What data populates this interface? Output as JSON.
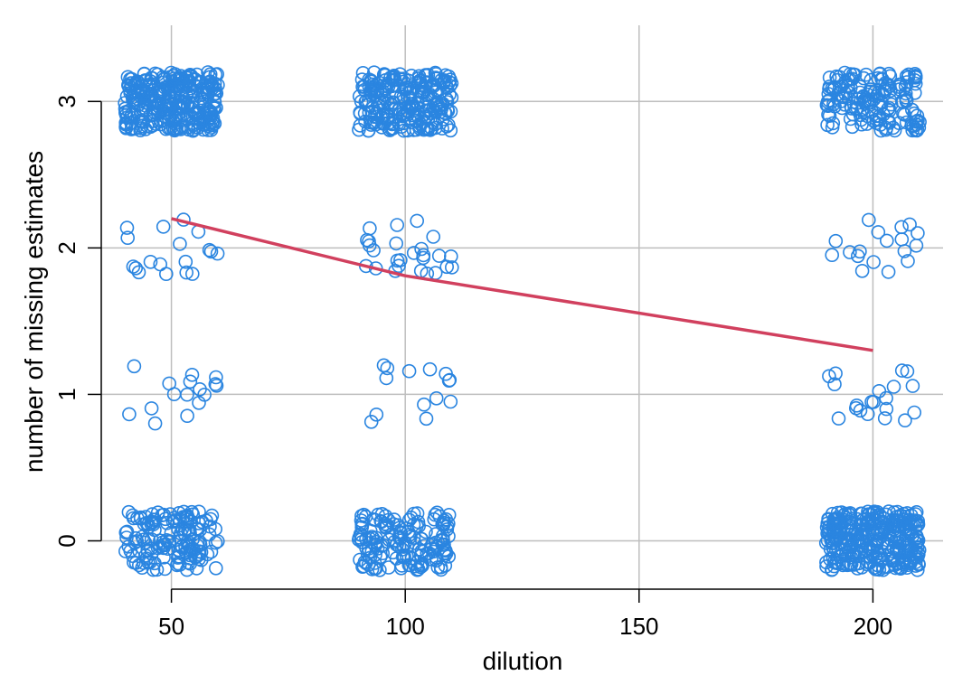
{
  "chart_data": {
    "type": "scatter",
    "title": "",
    "xlabel": "dilution",
    "ylabel": "number of missing estimates",
    "xlim": [
      35,
      215
    ],
    "ylim": [
      -0.33,
      3.52
    ],
    "x_ticks": [
      50,
      100,
      150,
      200
    ],
    "x_tick_labels": [
      "50",
      "100",
      "150",
      "200"
    ],
    "y_ticks": [
      0,
      1,
      2,
      3
    ],
    "y_tick_labels": [
      "0",
      "1",
      "2",
      "3"
    ],
    "grid": true,
    "legend": "none",
    "colors": {
      "points": "#2a85e0",
      "trend": "#d1405e",
      "grid": "#bebebe",
      "axis": "#000000"
    },
    "jitter": {
      "x": 10,
      "y": 0.2
    },
    "groups": [
      {
        "dilution": 50,
        "counts": {
          "0": 150,
          "1": 16,
          "2": 18,
          "3": 300
        }
      },
      {
        "dilution": 100,
        "counts": {
          "0": 160,
          "1": 14,
          "2": 26,
          "3": 240
        }
      },
      {
        "dilution": 200,
        "counts": {
          "0": 320,
          "1": 20,
          "2": 18,
          "3": 160
        }
      }
    ],
    "series": [
      {
        "type": "line",
        "x": [
          50,
          100,
          200
        ],
        "y": [
          2.2,
          1.81,
          1.3
        ]
      }
    ]
  }
}
